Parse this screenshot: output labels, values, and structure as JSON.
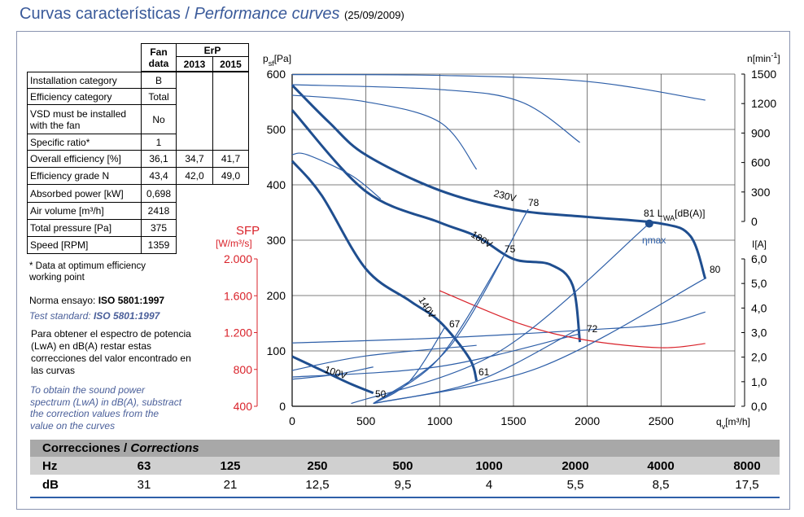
{
  "header": {
    "title": "Curvas características / ",
    "title_italic": "Performance curves",
    "date": "(25/09/2009)"
  },
  "fan_table": {
    "col_fan": "Fan data",
    "col_erp": "ErP",
    "col_2013": "2013",
    "col_2015": "2015",
    "rows": [
      [
        "Installation category",
        "B"
      ],
      [
        "Efficiency category",
        "Total"
      ],
      [
        "VSD must be installed with the fan",
        "No"
      ],
      [
        "Specific ratio*",
        "1"
      ],
      [
        "Overall efficiency [%]",
        "36,1",
        "34,7",
        "41,7"
      ],
      [
        "Efficiency grade N",
        "43,4",
        "42,0",
        "49,0"
      ],
      [
        "Absorbed power [kW]",
        "0,698"
      ],
      [
        "Air volume [m³/h]",
        "2418"
      ],
      [
        "Total pressure [Pa]",
        "375"
      ],
      [
        "Speed [RPM]",
        "1359"
      ]
    ]
  },
  "notes": {
    "footnote": "* Data at optimum efficiency working point",
    "standard_es": "Norma ensayo: ",
    "standard_es_value": "ISO 5801:1997",
    "standard_en": "Test standard: ",
    "standard_en_value": "ISO 5801:1997",
    "para_es": "Para obtener el espectro de potencia (LwA) en dB(A) restar estas correcciones del valor encontrado en las curvas",
    "para_en": "To obtain the sound power spectrum (LwA) in dB(A), substract the correction values from the value on the curves"
  },
  "chart_data": {
    "type": "line",
    "x_label": {
      "main": "q",
      "sub": "v",
      "unit": "[m³/h]"
    },
    "y_label": {
      "main": "p",
      "sub": "sf",
      "unit": "[Pa]"
    },
    "y2_label": {
      "main": "n",
      "unit": "[min",
      "sup": "-1",
      "close": "]"
    },
    "y3_label": {
      "main": "I",
      "unit": "[A]"
    },
    "y4_label": {
      "main": "SFP",
      "unit": "[W/m³/s]"
    },
    "xlim": [
      0,
      3000
    ],
    "xticks": [
      0,
      500,
      1000,
      1500,
      2000,
      2500
    ],
    "ylim": [
      0,
      600
    ],
    "yticks": [
      0,
      100,
      200,
      300,
      400,
      500,
      600
    ],
    "y2lim": [
      0,
      1500
    ],
    "y2ticks": [
      0,
      300,
      600,
      900,
      1200,
      1500
    ],
    "y3lim": [
      0,
      6
    ],
    "y3ticks": [
      {
        "value": 0,
        "label": "0,0"
      },
      {
        "value": 1,
        "label": "1,0"
      },
      {
        "value": 2,
        "label": "2,0"
      },
      {
        "value": 3,
        "label": "3,0"
      },
      {
        "value": 4,
        "label": "4,0"
      },
      {
        "value": 5,
        "label": "5,0"
      },
      {
        "value": 6,
        "label": "6,0"
      }
    ],
    "y4lim": [
      400,
      2000
    ],
    "y4ticks": [
      400,
      800,
      {
        "value": 1200,
        "label": "1.200"
      },
      {
        "value": 1600,
        "label": "1.600"
      },
      {
        "value": 2000,
        "label": "2.000"
      }
    ],
    "grid": true,
    "series": [
      {
        "name": "230V",
        "axis": "y",
        "style": "thick",
        "color": "#1f4e8f",
        "x": [
          0,
          250,
          500,
          1000,
          1500,
          2000,
          2500,
          2700,
          2800
        ],
        "values": [
          580,
          513,
          454,
          390,
          355,
          342,
          330,
          307,
          230
        ]
      },
      {
        "name": "180V",
        "axis": "y",
        "style": "thick",
        "color": "#1f4e8f",
        "x": [
          0,
          500,
          1000,
          1250,
          1500,
          1750,
          1900,
          1950
        ],
        "values": [
          535,
          388,
          332,
          307,
          266,
          256,
          219,
          116
        ]
      },
      {
        "name": "140V",
        "axis": "y",
        "style": "thick",
        "color": "#1f4e8f",
        "x": [
          0,
          200,
          500,
          800,
          1000,
          1200,
          1250
        ],
        "values": [
          443,
          381,
          248,
          190,
          153,
          87,
          46
        ]
      },
      {
        "name": "100V",
        "axis": "y",
        "style": "thick",
        "color": "#1f4e8f",
        "x": [
          0,
          200,
          400,
          550
        ],
        "values": [
          90,
          65,
          40,
          24
        ]
      },
      {
        "axis": "y2",
        "style": "thin",
        "color": "#2e5fa8",
        "x": [
          0,
          1000,
          2000,
          2800
        ],
        "values": [
          1495,
          1487,
          1425,
          1235
        ]
      },
      {
        "axis": "y2",
        "style": "thin",
        "color": "#2e5fa8",
        "x": [
          0,
          1000,
          1550,
          1950
        ],
        "values": [
          1392,
          1343,
          1218,
          804
        ]
      },
      {
        "axis": "y2",
        "style": "thin",
        "color": "#2e5fa8",
        "x": [
          0,
          500,
          1000,
          1250
        ],
        "values": [
          1285,
          1218,
          1011,
          530
        ]
      },
      {
        "axis": "y2",
        "style": "thin",
        "color": "#2e5fa8",
        "x": [
          0,
          100,
          400,
          600
        ],
        "values": [
          680,
          680,
          470,
          230
        ]
      },
      {
        "axis": "y3",
        "style": "thin",
        "color": "#2e5fa8",
        "x": [
          0,
          1000,
          2000,
          2500,
          2800
        ],
        "values": [
          2.58,
          2.78,
          3.11,
          3.34,
          3.84
        ]
      },
      {
        "axis": "y3",
        "style": "thin",
        "color": "#2e5fa8",
        "x": [
          0,
          500,
          1250
        ],
        "values": [
          1.46,
          2.05,
          2.48
        ]
      },
      {
        "axis": "y3",
        "style": "thin",
        "color": "#2e5fa8",
        "x": [
          0,
          1000,
          1950
        ],
        "values": [
          1.19,
          1.62,
          2.95
        ]
      },
      {
        "axis": "y3",
        "style": "thin",
        "color": "#2e5fa8",
        "x": [
          0,
          300,
          550
        ],
        "values": [
          1.1,
          1.3,
          1.6
        ]
      },
      {
        "axis": "y4",
        "style": "thin",
        "color": "#d9222a",
        "x": [
          1000,
          1550,
          2000,
          2500,
          2800
        ],
        "values": [
          1655,
          1293,
          1116,
          1036,
          1081
        ]
      },
      {
        "axis": "y",
        "style": "thin",
        "color": "#2e5fa8",
        "x": [
          550,
          1075,
          1600
        ],
        "values": [
          5,
          110,
          356
        ]
      },
      {
        "axis": "y",
        "style": "thin",
        "color": "#2e5fa8",
        "x": [
          550,
          990,
          1430
        ],
        "values": [
          5,
          85,
          270
        ]
      },
      {
        "axis": "y",
        "style": "thin",
        "color": "#2e5fa8",
        "x": [
          550,
          795,
          1040
        ],
        "values": [
          5,
          45,
          145
        ]
      },
      {
        "axis": "y",
        "style": "thin",
        "color": "#2e5fa8",
        "x": [
          550,
          1250,
          1950
        ],
        "values": [
          5,
          45,
          141
        ]
      },
      {
        "axis": "y",
        "style": "thin",
        "color": "#2e5fa8",
        "x": [
          550,
          1675,
          2800
        ],
        "values": [
          5,
          70,
          231
        ]
      },
      {
        "axis": "y",
        "style": "thin",
        "color": "#2e5fa8",
        "x": [
          400,
          1410,
          2420
        ],
        "values": [
          5,
          100,
          330
        ]
      }
    ],
    "annotations": [
      "78",
      "75",
      "67",
      "61",
      "50",
      "72",
      "80",
      "ηmax"
    ],
    "marker": {
      "x": 2420,
      "y": 330,
      "label": "81",
      "lw": "L",
      "lw_sub": "WA",
      "lw_unit": "[dB(A)]"
    }
  },
  "corrections": {
    "title": "Correcciones / ",
    "title_italic": "Corrections",
    "hz_label": "Hz",
    "hz": [
      "63",
      "125",
      "250",
      "500",
      "1000",
      "2000",
      "4000",
      "8000"
    ],
    "db_label": "dB",
    "db": [
      "31",
      "21",
      "12,5",
      "9,5",
      "4",
      "5,5",
      "8,5",
      "17,5"
    ]
  }
}
